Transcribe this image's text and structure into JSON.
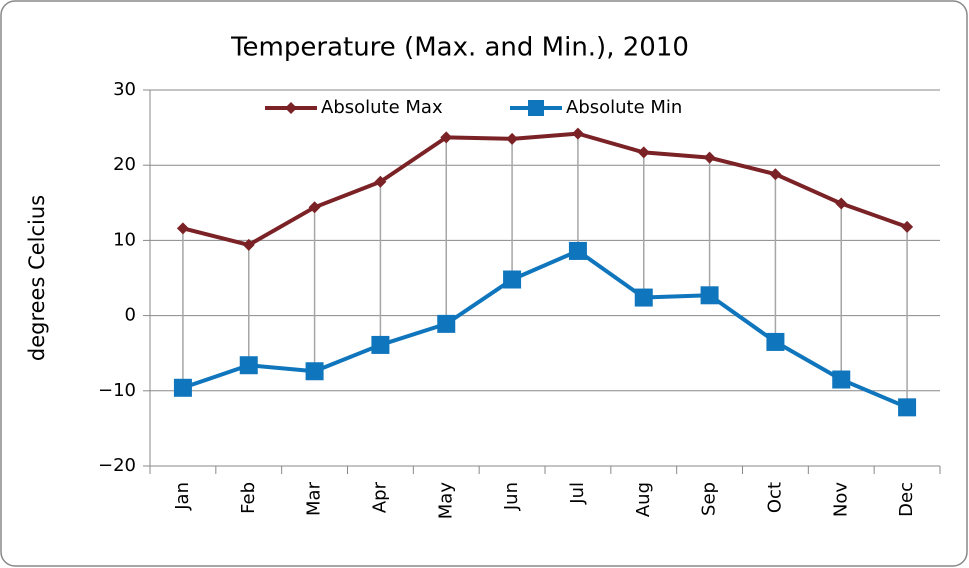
{
  "chart_data": {
    "type": "line",
    "title": "Temperature (Max. and Min.), 2010",
    "ylabel": "degrees Celcius",
    "categories": [
      "Jan",
      "Feb",
      "Mar",
      "Apr",
      "May",
      "Jun",
      "Jul",
      "Aug",
      "Sep",
      "Oct",
      "Nov",
      "Dec"
    ],
    "series": [
      {
        "name": "Absolute Max",
        "color": "#7b2226",
        "marker": "diamond",
        "values": [
          11.6,
          9.4,
          14.4,
          17.8,
          23.7,
          23.5,
          24.2,
          21.7,
          21.0,
          18.8,
          14.9,
          11.8
        ]
      },
      {
        "name": "Absolute Min",
        "color": "#0f75bc",
        "marker": "square",
        "values": [
          -9.6,
          -6.6,
          -7.4,
          -3.9,
          -1.1,
          4.8,
          8.6,
          2.4,
          2.7,
          -3.5,
          -8.5,
          -12.2
        ]
      }
    ],
    "ylim": [
      -20,
      30
    ],
    "yticks": [
      {
        "value": -20,
        "label": "−20"
      },
      {
        "value": -10,
        "label": "−10"
      },
      0,
      10,
      20,
      30
    ],
    "grid": true,
    "high_low_lines": true,
    "legend": "top"
  }
}
